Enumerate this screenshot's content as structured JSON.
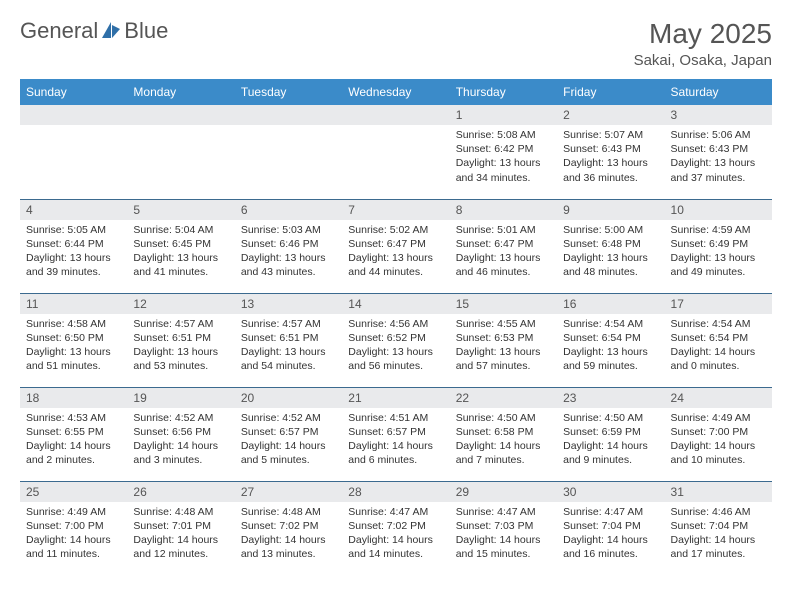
{
  "logo": {
    "text1": "General",
    "text2": "Blue"
  },
  "title": "May 2025",
  "location": "Sakai, Osaka, Japan",
  "colors": {
    "header_bg": "#3b8bc9",
    "header_text": "#ffffff",
    "daynum_bg": "#e9eaec",
    "border": "#3b6a8f",
    "text": "#333333",
    "title_text": "#555555"
  },
  "day_headers": [
    "Sunday",
    "Monday",
    "Tuesday",
    "Wednesday",
    "Thursday",
    "Friday",
    "Saturday"
  ],
  "weeks": [
    [
      {
        "num": "",
        "sunrise": "",
        "sunset": "",
        "daylight": ""
      },
      {
        "num": "",
        "sunrise": "",
        "sunset": "",
        "daylight": ""
      },
      {
        "num": "",
        "sunrise": "",
        "sunset": "",
        "daylight": ""
      },
      {
        "num": "",
        "sunrise": "",
        "sunset": "",
        "daylight": ""
      },
      {
        "num": "1",
        "sunrise": "Sunrise: 5:08 AM",
        "sunset": "Sunset: 6:42 PM",
        "daylight": "Daylight: 13 hours and 34 minutes."
      },
      {
        "num": "2",
        "sunrise": "Sunrise: 5:07 AM",
        "sunset": "Sunset: 6:43 PM",
        "daylight": "Daylight: 13 hours and 36 minutes."
      },
      {
        "num": "3",
        "sunrise": "Sunrise: 5:06 AM",
        "sunset": "Sunset: 6:43 PM",
        "daylight": "Daylight: 13 hours and 37 minutes."
      }
    ],
    [
      {
        "num": "4",
        "sunrise": "Sunrise: 5:05 AM",
        "sunset": "Sunset: 6:44 PM",
        "daylight": "Daylight: 13 hours and 39 minutes."
      },
      {
        "num": "5",
        "sunrise": "Sunrise: 5:04 AM",
        "sunset": "Sunset: 6:45 PM",
        "daylight": "Daylight: 13 hours and 41 minutes."
      },
      {
        "num": "6",
        "sunrise": "Sunrise: 5:03 AM",
        "sunset": "Sunset: 6:46 PM",
        "daylight": "Daylight: 13 hours and 43 minutes."
      },
      {
        "num": "7",
        "sunrise": "Sunrise: 5:02 AM",
        "sunset": "Sunset: 6:47 PM",
        "daylight": "Daylight: 13 hours and 44 minutes."
      },
      {
        "num": "8",
        "sunrise": "Sunrise: 5:01 AM",
        "sunset": "Sunset: 6:47 PM",
        "daylight": "Daylight: 13 hours and 46 minutes."
      },
      {
        "num": "9",
        "sunrise": "Sunrise: 5:00 AM",
        "sunset": "Sunset: 6:48 PM",
        "daylight": "Daylight: 13 hours and 48 minutes."
      },
      {
        "num": "10",
        "sunrise": "Sunrise: 4:59 AM",
        "sunset": "Sunset: 6:49 PM",
        "daylight": "Daylight: 13 hours and 49 minutes."
      }
    ],
    [
      {
        "num": "11",
        "sunrise": "Sunrise: 4:58 AM",
        "sunset": "Sunset: 6:50 PM",
        "daylight": "Daylight: 13 hours and 51 minutes."
      },
      {
        "num": "12",
        "sunrise": "Sunrise: 4:57 AM",
        "sunset": "Sunset: 6:51 PM",
        "daylight": "Daylight: 13 hours and 53 minutes."
      },
      {
        "num": "13",
        "sunrise": "Sunrise: 4:57 AM",
        "sunset": "Sunset: 6:51 PM",
        "daylight": "Daylight: 13 hours and 54 minutes."
      },
      {
        "num": "14",
        "sunrise": "Sunrise: 4:56 AM",
        "sunset": "Sunset: 6:52 PM",
        "daylight": "Daylight: 13 hours and 56 minutes."
      },
      {
        "num": "15",
        "sunrise": "Sunrise: 4:55 AM",
        "sunset": "Sunset: 6:53 PM",
        "daylight": "Daylight: 13 hours and 57 minutes."
      },
      {
        "num": "16",
        "sunrise": "Sunrise: 4:54 AM",
        "sunset": "Sunset: 6:54 PM",
        "daylight": "Daylight: 13 hours and 59 minutes."
      },
      {
        "num": "17",
        "sunrise": "Sunrise: 4:54 AM",
        "sunset": "Sunset: 6:54 PM",
        "daylight": "Daylight: 14 hours and 0 minutes."
      }
    ],
    [
      {
        "num": "18",
        "sunrise": "Sunrise: 4:53 AM",
        "sunset": "Sunset: 6:55 PM",
        "daylight": "Daylight: 14 hours and 2 minutes."
      },
      {
        "num": "19",
        "sunrise": "Sunrise: 4:52 AM",
        "sunset": "Sunset: 6:56 PM",
        "daylight": "Daylight: 14 hours and 3 minutes."
      },
      {
        "num": "20",
        "sunrise": "Sunrise: 4:52 AM",
        "sunset": "Sunset: 6:57 PM",
        "daylight": "Daylight: 14 hours and 5 minutes."
      },
      {
        "num": "21",
        "sunrise": "Sunrise: 4:51 AM",
        "sunset": "Sunset: 6:57 PM",
        "daylight": "Daylight: 14 hours and 6 minutes."
      },
      {
        "num": "22",
        "sunrise": "Sunrise: 4:50 AM",
        "sunset": "Sunset: 6:58 PM",
        "daylight": "Daylight: 14 hours and 7 minutes."
      },
      {
        "num": "23",
        "sunrise": "Sunrise: 4:50 AM",
        "sunset": "Sunset: 6:59 PM",
        "daylight": "Daylight: 14 hours and 9 minutes."
      },
      {
        "num": "24",
        "sunrise": "Sunrise: 4:49 AM",
        "sunset": "Sunset: 7:00 PM",
        "daylight": "Daylight: 14 hours and 10 minutes."
      }
    ],
    [
      {
        "num": "25",
        "sunrise": "Sunrise: 4:49 AM",
        "sunset": "Sunset: 7:00 PM",
        "daylight": "Daylight: 14 hours and 11 minutes."
      },
      {
        "num": "26",
        "sunrise": "Sunrise: 4:48 AM",
        "sunset": "Sunset: 7:01 PM",
        "daylight": "Daylight: 14 hours and 12 minutes."
      },
      {
        "num": "27",
        "sunrise": "Sunrise: 4:48 AM",
        "sunset": "Sunset: 7:02 PM",
        "daylight": "Daylight: 14 hours and 13 minutes."
      },
      {
        "num": "28",
        "sunrise": "Sunrise: 4:47 AM",
        "sunset": "Sunset: 7:02 PM",
        "daylight": "Daylight: 14 hours and 14 minutes."
      },
      {
        "num": "29",
        "sunrise": "Sunrise: 4:47 AM",
        "sunset": "Sunset: 7:03 PM",
        "daylight": "Daylight: 14 hours and 15 minutes."
      },
      {
        "num": "30",
        "sunrise": "Sunrise: 4:47 AM",
        "sunset": "Sunset: 7:04 PM",
        "daylight": "Daylight: 14 hours and 16 minutes."
      },
      {
        "num": "31",
        "sunrise": "Sunrise: 4:46 AM",
        "sunset": "Sunset: 7:04 PM",
        "daylight": "Daylight: 14 hours and 17 minutes."
      }
    ]
  ]
}
